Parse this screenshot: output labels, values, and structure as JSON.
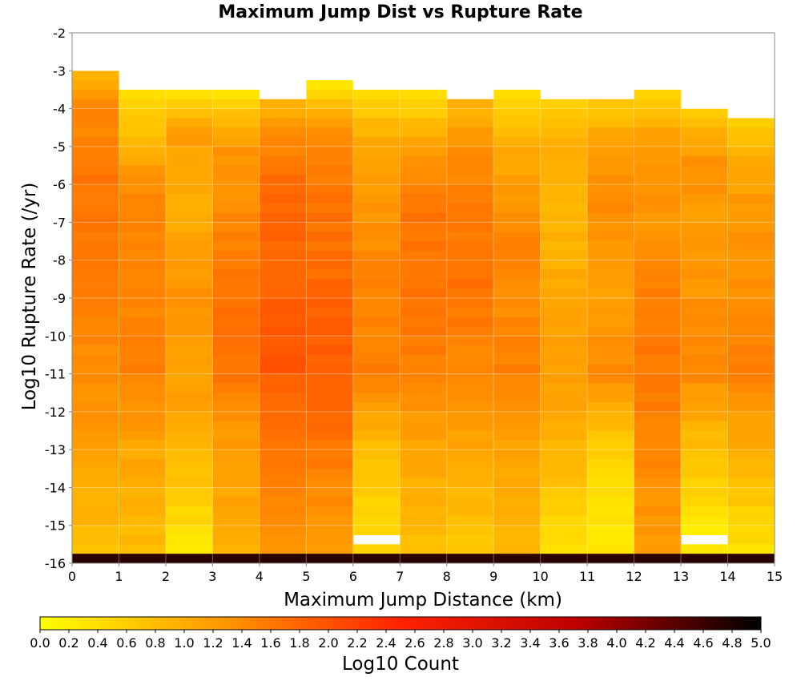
{
  "chart_data": {
    "type": "heatmap",
    "title": "Maximum Jump Dist vs Rupture Rate",
    "xlabel": "Maximum Jump Distance (km)",
    "ylabel": "Log10 Rupture Rate (/yr)",
    "colorbar_label": "Log10 Count",
    "xlim": [
      0,
      15
    ],
    "ylim": [
      -16,
      -2
    ],
    "x_ticks": [
      "0",
      "1",
      "2",
      "3",
      "4",
      "5",
      "6",
      "7",
      "8",
      "9",
      "10",
      "11",
      "12",
      "13",
      "14",
      "15"
    ],
    "y_ticks": [
      "-2",
      "-3",
      "-4",
      "-5",
      "-6",
      "-7",
      "-8",
      "-9",
      "-10",
      "-11",
      "-12",
      "-13",
      "-14",
      "-15",
      "-16"
    ],
    "colorbar_range": [
      0,
      5
    ],
    "colorbar_ticks": [
      "0.0",
      "0.2",
      "0.4",
      "0.6",
      "0.8",
      "1.0",
      "1.2",
      "1.4",
      "1.6",
      "1.8",
      "2.0",
      "2.2",
      "2.4",
      "2.6",
      "2.8",
      "3.0",
      "3.2",
      "3.4",
      "3.6",
      "3.8",
      "4.0",
      "4.2",
      "4.4",
      "4.6",
      "4.8",
      "5.0"
    ],
    "colormap": [
      "#ffff00",
      "#ff9900",
      "#ff2200",
      "#bb0000",
      "#000000"
    ],
    "grid": true,
    "x_bin_width_km": 1,
    "y_bin_height_log10": 0.25,
    "columns": [
      {
        "x_range": [
          0,
          1
        ],
        "y_top": -3.0,
        "y_bottom": -15.75
      },
      {
        "x_range": [
          1,
          2
        ],
        "y_top": -3.5,
        "y_bottom": -15.75
      },
      {
        "x_range": [
          2,
          3
        ],
        "y_top": -3.5,
        "y_bottom": -15.75
      },
      {
        "x_range": [
          3,
          4
        ],
        "y_top": -3.5,
        "y_bottom": -15.75
      },
      {
        "x_range": [
          4,
          5
        ],
        "y_top": -3.75,
        "y_bottom": -15.75
      },
      {
        "x_range": [
          5,
          6
        ],
        "y_top": -3.25,
        "y_bottom": -15.75
      },
      {
        "x_range": [
          6,
          7
        ],
        "y_top": -3.5,
        "y_bottom": -15.75
      },
      {
        "x_range": [
          7,
          8
        ],
        "y_top": -3.5,
        "y_bottom": -15.75
      },
      {
        "x_range": [
          8,
          9
        ],
        "y_top": -3.75,
        "y_bottom": -15.75
      },
      {
        "x_range": [
          9,
          10
        ],
        "y_top": -3.5,
        "y_bottom": -15.75
      },
      {
        "x_range": [
          10,
          11
        ],
        "y_top": -3.75,
        "y_bottom": -15.75
      },
      {
        "x_range": [
          11,
          12
        ],
        "y_top": -3.75,
        "y_bottom": -15.75
      },
      {
        "x_range": [
          12,
          13
        ],
        "y_top": -3.5,
        "y_bottom": -15.75
      },
      {
        "x_range": [
          13,
          14
        ],
        "y_top": -4.0,
        "y_bottom": -15.75
      },
      {
        "x_range": [
          14,
          15
        ],
        "y_top": -4.25,
        "y_bottom": -15.75
      }
    ],
    "empty_bins": [
      {
        "x_range": [
          6,
          7
        ],
        "y_range": [
          -15.5,
          -15.25
        ]
      },
      {
        "x_range": [
          13,
          14
        ],
        "y_range": [
          -15.5,
          -15.25
        ]
      }
    ],
    "log10_count_profiles": [
      {
        "x": 0,
        "values": [
          [
            -3.0,
            0.9
          ],
          [
            -4.0,
            1.4
          ],
          [
            -6.0,
            1.65
          ],
          [
            -9.0,
            1.5
          ],
          [
            -12.0,
            1.3
          ],
          [
            -14.0,
            1.0
          ],
          [
            -15.5,
            0.8
          ]
        ]
      },
      {
        "x": 1,
        "values": [
          [
            -3.5,
            0.4
          ],
          [
            -4.5,
            0.7
          ],
          [
            -6.0,
            1.4
          ],
          [
            -9.0,
            1.45
          ],
          [
            -11.0,
            1.5
          ],
          [
            -13.0,
            1.1
          ],
          [
            -15.5,
            0.8
          ]
        ]
      },
      {
        "x": 2,
        "values": [
          [
            -3.5,
            0.25
          ],
          [
            -4.5,
            1.2
          ],
          [
            -6.5,
            1.0
          ],
          [
            -9.0,
            1.3
          ],
          [
            -12.0,
            1.1
          ],
          [
            -14.0,
            0.7
          ],
          [
            -15.5,
            0.3
          ]
        ]
      },
      {
        "x": 3,
        "values": [
          [
            -3.5,
            0.3
          ],
          [
            -5.0,
            1.3
          ],
          [
            -7.0,
            1.4
          ],
          [
            -9.0,
            1.65
          ],
          [
            -11.0,
            1.6
          ],
          [
            -13.0,
            1.2
          ],
          [
            -15.5,
            1.0
          ]
        ]
      },
      {
        "x": 4,
        "values": [
          [
            -3.75,
            0.9
          ],
          [
            -5.0,
            1.5
          ],
          [
            -6.0,
            1.8
          ],
          [
            -8.0,
            1.75
          ],
          [
            -10.5,
            2.0
          ],
          [
            -12.0,
            1.7
          ],
          [
            -15.5,
            1.3
          ]
        ]
      },
      {
        "x": 5,
        "values": [
          [
            -3.25,
            0.25
          ],
          [
            -4.5,
            1.3
          ],
          [
            -6.0,
            1.6
          ],
          [
            -8.0,
            1.7
          ],
          [
            -10.0,
            1.9
          ],
          [
            -12.0,
            1.75
          ],
          [
            -15.5,
            1.2
          ]
        ]
      },
      {
        "x": 6,
        "values": [
          [
            -3.5,
            0.45
          ],
          [
            -5.0,
            1.1
          ],
          [
            -7.0,
            1.3
          ],
          [
            -9.0,
            1.5
          ],
          [
            -11.0,
            1.5
          ],
          [
            -13.0,
            0.8
          ],
          [
            -15.0,
            0.5
          ]
        ]
      },
      {
        "x": 7,
        "values": [
          [
            -3.5,
            0.3
          ],
          [
            -5.0,
            1.2
          ],
          [
            -7.0,
            1.65
          ],
          [
            -9.0,
            1.6
          ],
          [
            -11.0,
            1.5
          ],
          [
            -13.0,
            1.1
          ],
          [
            -15.5,
            0.8
          ]
        ]
      },
      {
        "x": 8,
        "values": [
          [
            -3.75,
            0.9
          ],
          [
            -5.0,
            1.3
          ],
          [
            -6.5,
            1.6
          ],
          [
            -9.0,
            1.65
          ],
          [
            -11.0,
            1.4
          ],
          [
            -13.0,
            1.1
          ],
          [
            -15.5,
            0.7
          ]
        ]
      },
      {
        "x": 9,
        "values": [
          [
            -3.5,
            0.3
          ],
          [
            -5.0,
            1.0
          ],
          [
            -7.5,
            1.5
          ],
          [
            -9.0,
            1.4
          ],
          [
            -11.0,
            1.5
          ],
          [
            -13.0,
            1.1
          ],
          [
            -15.5,
            0.9
          ]
        ]
      },
      {
        "x": 10,
        "values": [
          [
            -3.75,
            0.5
          ],
          [
            -5.0,
            1.0
          ],
          [
            -7.0,
            0.9
          ],
          [
            -9.0,
            1.1
          ],
          [
            -11.0,
            1.2
          ],
          [
            -13.0,
            0.9
          ],
          [
            -15.5,
            0.4
          ]
        ]
      },
      {
        "x": 11,
        "values": [
          [
            -3.75,
            0.6
          ],
          [
            -5.0,
            1.2
          ],
          [
            -6.5,
            1.4
          ],
          [
            -9.0,
            1.2
          ],
          [
            -11.0,
            1.4
          ],
          [
            -13.0,
            0.6
          ],
          [
            -15.0,
            0.3
          ]
        ]
      },
      {
        "x": 12,
        "values": [
          [
            -3.5,
            0.5
          ],
          [
            -5.0,
            1.3
          ],
          [
            -7.0,
            1.3
          ],
          [
            -8.5,
            1.5
          ],
          [
            -10.5,
            1.6
          ],
          [
            -12.0,
            1.55
          ],
          [
            -15.5,
            1.2
          ]
        ]
      },
      {
        "x": 13,
        "values": [
          [
            -4.0,
            0.6
          ],
          [
            -5.5,
            1.4
          ],
          [
            -7.0,
            1.2
          ],
          [
            -9.0,
            1.3
          ],
          [
            -11.0,
            1.4
          ],
          [
            -13.0,
            0.8
          ],
          [
            -15.0,
            0.3
          ]
        ]
      },
      {
        "x": 14,
        "values": [
          [
            -4.25,
            0.5
          ],
          [
            -5.5,
            1.1
          ],
          [
            -7.0,
            1.3
          ],
          [
            -9.0,
            1.4
          ],
          [
            -11.0,
            1.5
          ],
          [
            -13.0,
            1.0
          ],
          [
            -15.5,
            0.4
          ]
        ]
      }
    ],
    "bottom_row": {
      "y_range": [
        -16,
        -15.75
      ],
      "log10_count": 4.7
    }
  }
}
